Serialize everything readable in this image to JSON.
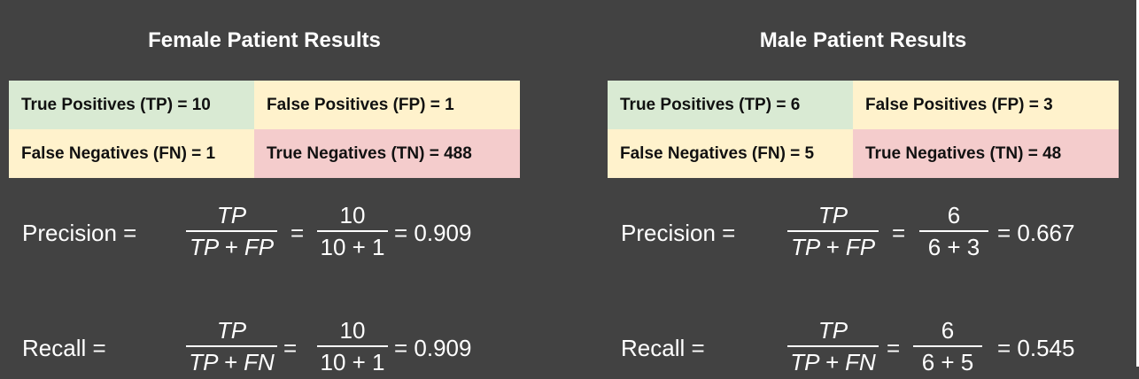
{
  "female": {
    "title": "Female Patient Results",
    "matrix": {
      "tp": "True Positives (TP) = 10",
      "fp": "False Positives (FP) = 1",
      "fn": "False Negatives (FN) = 1",
      "tn": "True Negatives (TN) = 488"
    },
    "precision": {
      "label": "Precision =",
      "sym_num": "TP",
      "sym_den": "TP + FP",
      "eq": "=",
      "val_num": "10",
      "val_den": "10 + 1",
      "result": "= 0.909"
    },
    "recall": {
      "label": "Recall =",
      "sym_num": "TP",
      "sym_den": "TP + FN",
      "eq": "=",
      "val_num": "10",
      "val_den": "10 + 1",
      "result": "= 0.909"
    }
  },
  "male": {
    "title": "Male Patient Results",
    "matrix": {
      "tp": "True Positives (TP) = 6",
      "fp": "False Positives (FP) = 3",
      "fn": "False Negatives (FN) = 5",
      "tn": "True Negatives (TN) = 48"
    },
    "precision": {
      "label": "Precision =",
      "sym_num": "TP",
      "sym_den": "TP + FP",
      "eq": "=",
      "val_num": "6",
      "val_den": "6 + 3",
      "result": "= 0.667"
    },
    "recall": {
      "label": "Recall =",
      "sym_num": "TP",
      "sym_den": "TP + FN",
      "eq": "=",
      "val_num": "6",
      "val_den": "6 + 5",
      "result": "= 0.545"
    }
  },
  "colors": {
    "background": "#424242",
    "tp_cell": "#d9ead3",
    "fp_fn_cell": "#fff2cc",
    "tn_cell": "#f4cccc"
  }
}
